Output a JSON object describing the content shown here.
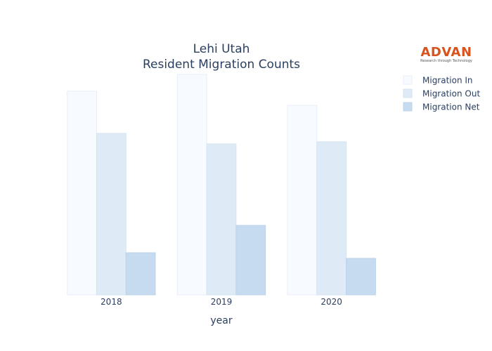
{
  "logo": {
    "brand": "ADVAN",
    "tagline": "Research through Technology"
  },
  "chart_data": {
    "type": "bar",
    "title": [
      "Lehi Utah",
      "Resident Migration Counts"
    ],
    "xlabel": "year",
    "ylabel": "",
    "categories": [
      "2018",
      "2019",
      "2020"
    ],
    "series": [
      {
        "name": "Migration In",
        "values": [
          2900,
          3140,
          2700
        ],
        "color": "#f7fbff",
        "stroke": "#e8eef8"
      },
      {
        "name": "Migration Out",
        "values": [
          2300,
          2150,
          2180
        ],
        "color": "#deebf7",
        "stroke": "#d4e2f2"
      },
      {
        "name": "Migration Net",
        "values": [
          600,
          990,
          520
        ],
        "color": "#c6dbef",
        "stroke": "#bcd3ea"
      }
    ],
    "ylim": [
      0,
      3200
    ],
    "grid": false,
    "legend_position": "top-right"
  }
}
